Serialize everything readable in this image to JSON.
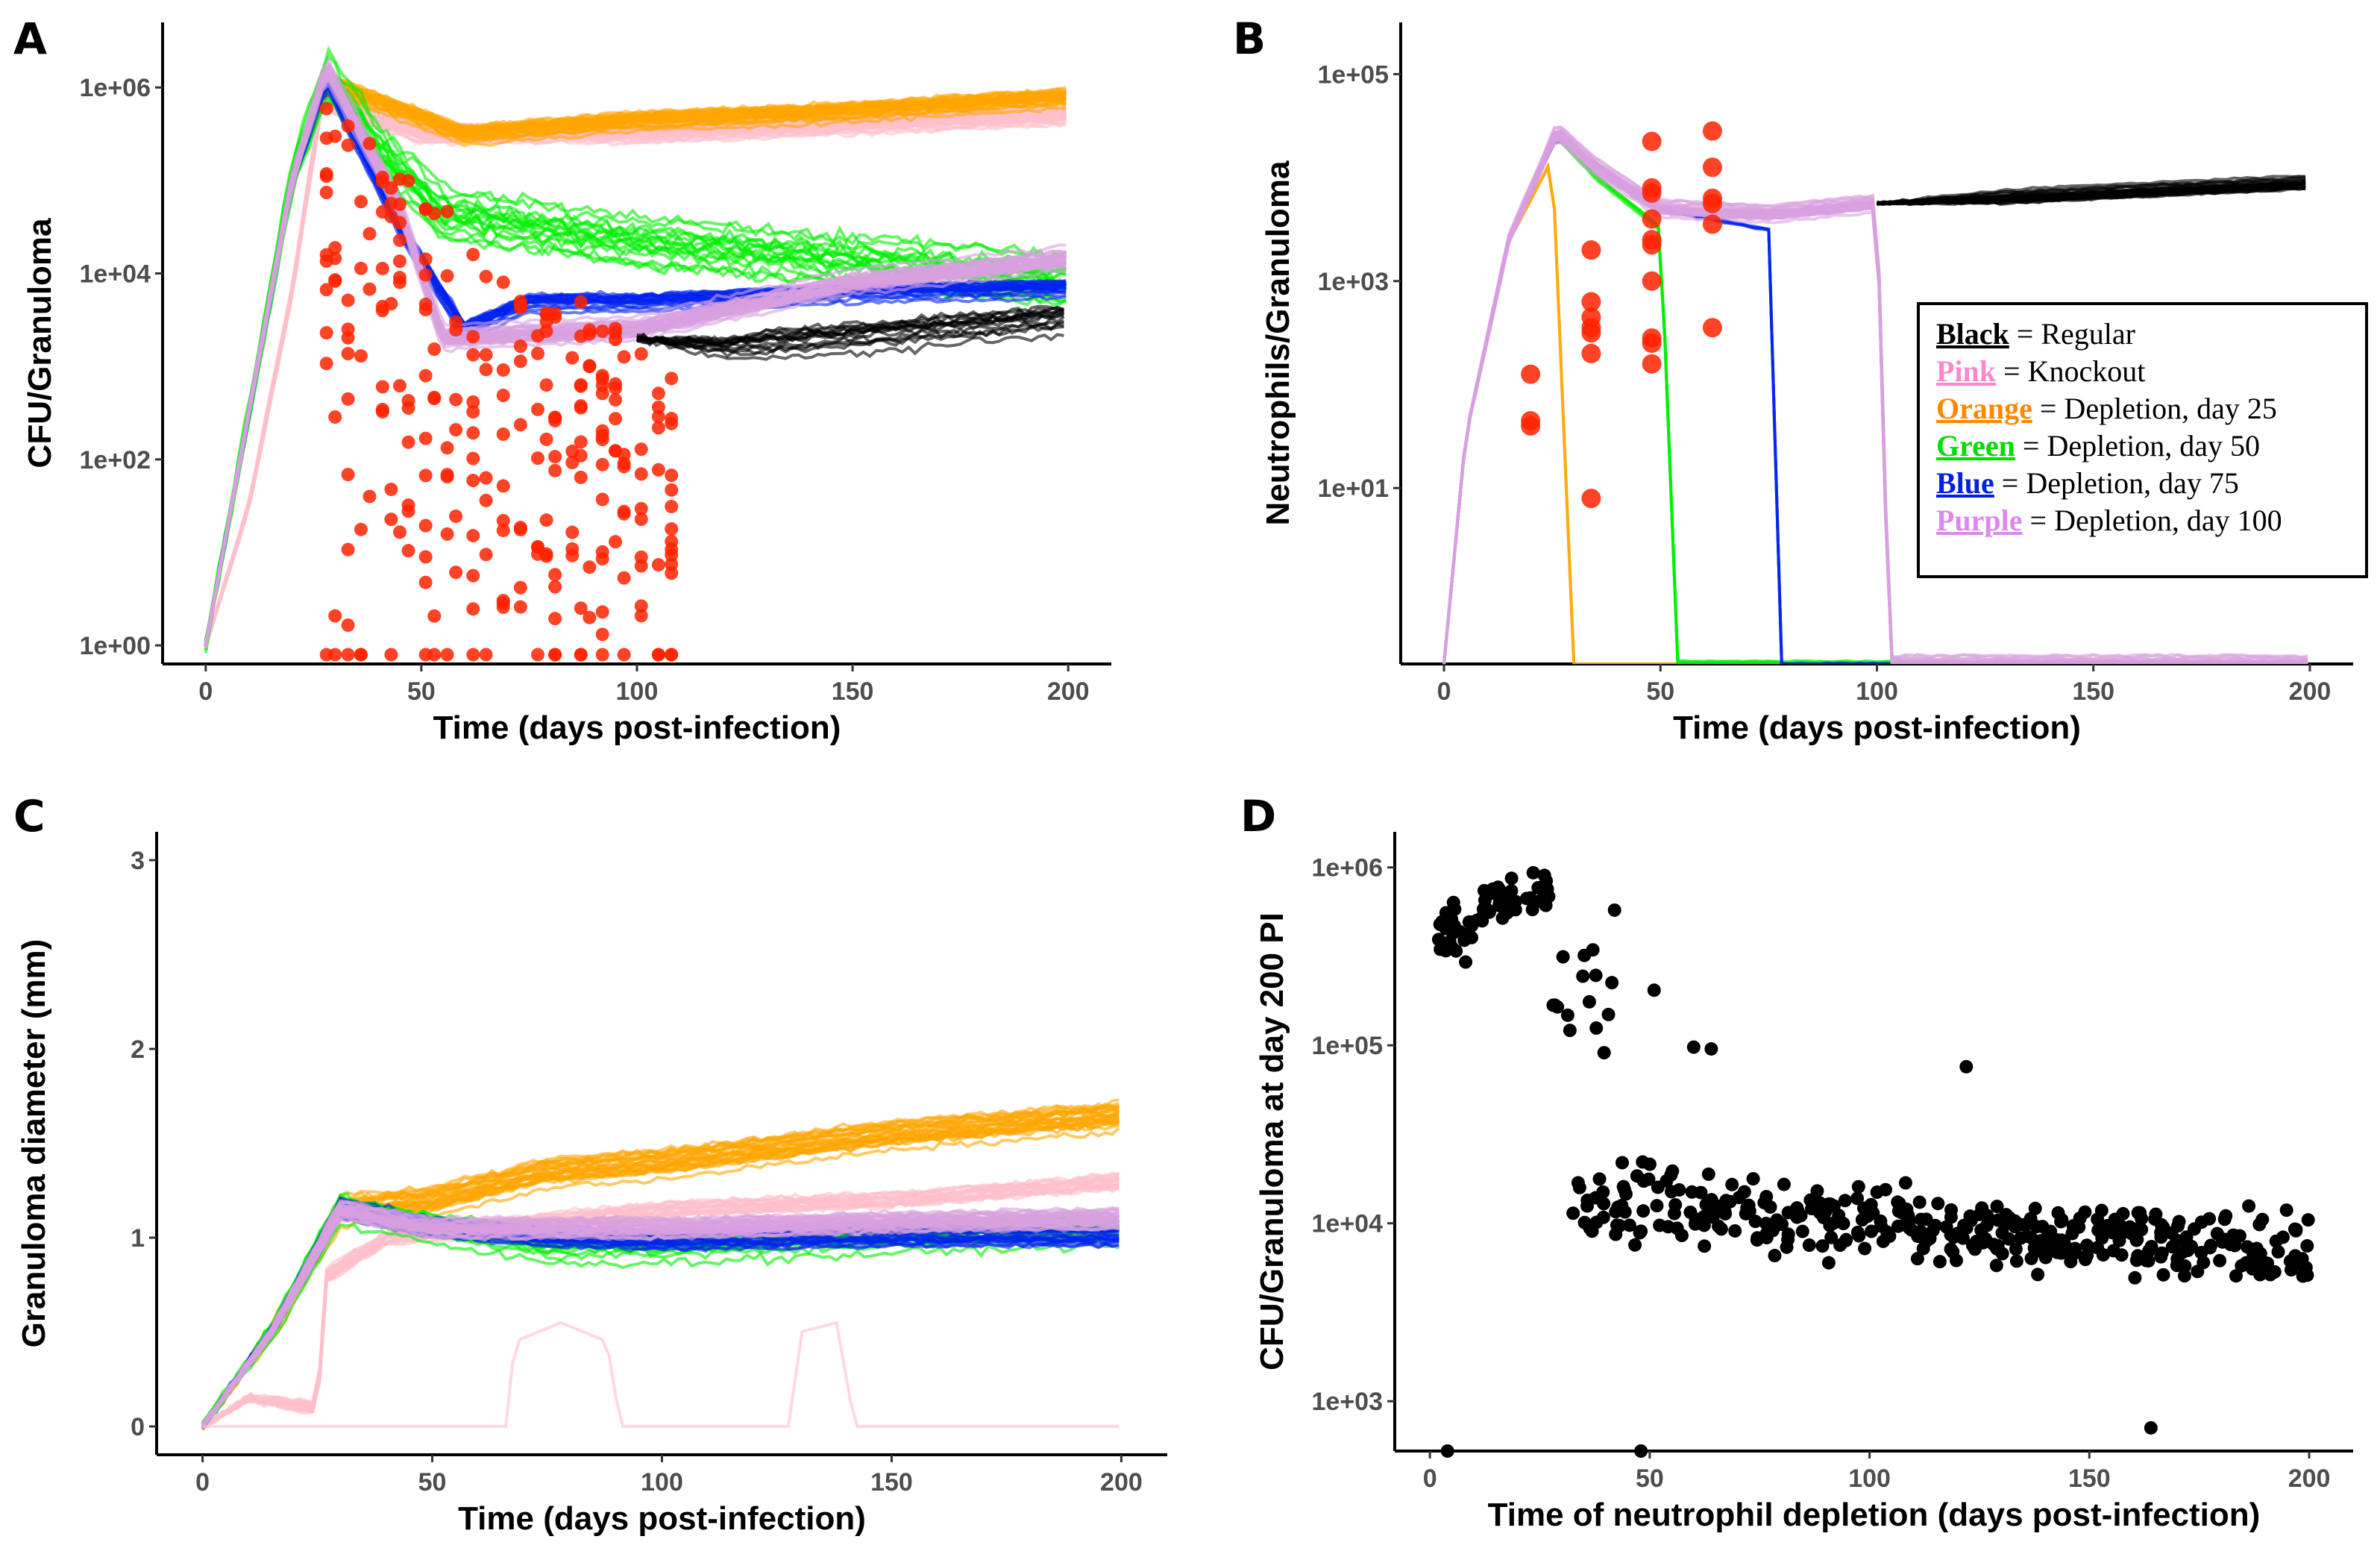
{
  "figure": {
    "panels": [
      "A",
      "B",
      "C",
      "D"
    ]
  },
  "colors": {
    "regular": "#000000",
    "knockout": "#ffc0cb",
    "depletion_25": "#ffa500",
    "depletion_50": "#00ee00",
    "depletion_75": "#0022ee",
    "depletion_100": "#d8a0e0",
    "depletion_100_dark": "#9a86c8",
    "event_dots": "#ff2200",
    "scatter": "#000000",
    "axis": "#000000",
    "tick_text": "#4d4d4d"
  },
  "legend": {
    "items": [
      {
        "key": "Black",
        "text": " = Regular",
        "color": "#000000"
      },
      {
        "key": "Pink",
        "text": " = Knockout",
        "color": "#ff88cc"
      },
      {
        "key": "Orange",
        "text": " = Depletion, day 25",
        "color": "#ff8800"
      },
      {
        "key": "Green",
        "text": " = Depletion, day 50",
        "color": "#00dd00"
      },
      {
        "key": "Blue",
        "text": " = Depletion, day 75",
        "color": "#0022dd"
      },
      {
        "key": "Purple",
        "text": " = Depletion, day 100",
        "color": "#dd88ee"
      }
    ]
  },
  "chart_data": [
    {
      "panel": "A",
      "type": "line",
      "title": "",
      "xlabel": "Time (days post-infection)",
      "ylabel": "CFU/Granuloma",
      "yscale": "log10",
      "xlim": [
        -10,
        210
      ],
      "ylim_log10": [
        -0.2,
        6.7
      ],
      "x_ticks": [
        0,
        50,
        100,
        150,
        200
      ],
      "x_tick_labels": [
        "0",
        "50",
        "100",
        "150",
        "200"
      ],
      "y_ticks_log10": [
        0,
        2,
        4,
        6
      ],
      "y_tick_labels": [
        "1e+00",
        "1e+02",
        "1e+04",
        "1e+06"
      ],
      "grid": false,
      "series": [
        {
          "name": "Knockout",
          "color_key": "knockout",
          "count": 30,
          "points": [
            [
              0,
              0
            ],
            [
              10,
              1.5
            ],
            [
              20,
              3.8
            ],
            [
              27,
              5.9
            ],
            [
              30,
              5.8
            ],
            [
              50,
              5.5
            ],
            [
              100,
              5.5
            ],
            [
              150,
              5.6
            ],
            [
              200,
              5.7
            ]
          ],
          "spread": 0.15
        },
        {
          "name": "Depletion, day 25",
          "color_key": "depletion_25",
          "count": 30,
          "points": [
            [
              0,
              0
            ],
            [
              10,
              2.5
            ],
            [
              20,
              5.0
            ],
            [
              28,
              6.05
            ],
            [
              40,
              5.85
            ],
            [
              60,
              5.5
            ],
            [
              100,
              5.65
            ],
            [
              150,
              5.75
            ],
            [
              200,
              5.9
            ]
          ],
          "spread": 0.15
        },
        {
          "name": "Depletion, day 50",
          "color_key": "depletion_50",
          "count": 18,
          "points": [
            [
              0,
              0
            ],
            [
              10,
              2.5
            ],
            [
              20,
              5.0
            ],
            [
              28,
              6.1
            ],
            [
              40,
              5.3
            ],
            [
              55,
              4.6
            ],
            [
              100,
              4.3
            ],
            [
              150,
              4.1
            ],
            [
              200,
              3.9
            ]
          ],
          "spread": 0.45
        },
        {
          "name": "Depletion, day 75",
          "color_key": "depletion_75",
          "count": 20,
          "points": [
            [
              0,
              0
            ],
            [
              10,
              2.5
            ],
            [
              20,
              5.0
            ],
            [
              28,
              6.1
            ],
            [
              45,
              4.5
            ],
            [
              60,
              3.4
            ],
            [
              75,
              3.7
            ],
            [
              100,
              3.7
            ],
            [
              150,
              3.8
            ],
            [
              200,
              3.85
            ]
          ],
          "spread": 0.15
        },
        {
          "name": "Depletion, day 100",
          "color_key": "depletion_100",
          "count": 30,
          "points": [
            [
              0,
              0
            ],
            [
              10,
              2.5
            ],
            [
              20,
              5.0
            ],
            [
              28,
              6.2
            ],
            [
              45,
              4.7
            ],
            [
              55,
              3.3
            ],
            [
              100,
              3.4
            ],
            [
              150,
              3.9
            ],
            [
              200,
              4.15
            ]
          ],
          "spread": 0.15
        },
        {
          "name": "Regular",
          "color_key": "regular",
          "count": 15,
          "points": [
            [
              100,
              3.3
            ],
            [
              120,
              3.2
            ],
            [
              150,
              3.3
            ],
            [
              200,
              3.5
            ]
          ],
          "spread": 0.25
        }
      ],
      "event_dots": {
        "x_range": [
          28,
          110
        ],
        "log10_range": [
          0,
          5.8
        ],
        "count": 260
      }
    },
    {
      "panel": "B",
      "type": "line",
      "title": "",
      "xlabel": "Time (days post-infection)",
      "ylabel": "Neutrophils/Granuloma",
      "yscale": "log10",
      "xlim": [
        -10,
        210
      ],
      "ylim_log10": [
        -0.7,
        5.5
      ],
      "x_ticks": [
        0,
        50,
        100,
        150,
        200
      ],
      "x_tick_labels": [
        "0",
        "50",
        "100",
        "150",
        "200"
      ],
      "y_ticks_log10": [
        1,
        3,
        5
      ],
      "y_tick_labels": [
        "1e+01",
        "1e+03",
        "1e+05"
      ],
      "grid": false,
      "series": [
        {
          "name": "Depletion, day 25",
          "color_key": "depletion_25",
          "count": 3,
          "points": [
            [
              0,
              -0.7
            ],
            [
              5,
              1.5
            ],
            [
              15,
              3.4
            ],
            [
              25,
              4.2
            ],
            [
              30,
              -0.7
            ],
            [
              200,
              -0.7
            ]
          ],
          "spread": 0.05
        },
        {
          "name": "Depletion, day 50",
          "color_key": "depletion_50",
          "count": 5,
          "points": [
            [
              0,
              -0.7
            ],
            [
              5,
              1.5
            ],
            [
              15,
              3.4
            ],
            [
              26,
              4.4
            ],
            [
              35,
              4.0
            ],
            [
              50,
              3.5
            ],
            [
              54,
              -0.7
            ],
            [
              200,
              -0.7
            ]
          ],
          "spread": 0.05
        },
        {
          "name": "Depletion, day 75",
          "color_key": "depletion_75",
          "count": 4,
          "points": [
            [
              0,
              -0.7
            ],
            [
              5,
              1.5
            ],
            [
              15,
              3.4
            ],
            [
              26,
              4.4
            ],
            [
              50,
              3.7
            ],
            [
              75,
              3.5
            ],
            [
              78,
              -0.7
            ],
            [
              200,
              -0.7
            ]
          ],
          "spread": 0.05
        },
        {
          "name": "Depletion, day 100",
          "color_key": "depletion_100",
          "count": 25,
          "points": [
            [
              0,
              -0.7
            ],
            [
              5,
              1.5
            ],
            [
              15,
              3.4
            ],
            [
              26,
              4.45
            ],
            [
              35,
              4.1
            ],
            [
              50,
              3.7
            ],
            [
              75,
              3.65
            ],
            [
              100,
              3.75
            ],
            [
              103,
              -0.7
            ],
            [
              200,
              -0.7
            ]
          ],
          "spread": 0.1
        },
        {
          "name": "Regular",
          "color_key": "regular",
          "count": 25,
          "points": [
            [
              100,
              3.75
            ],
            [
              150,
              3.85
            ],
            [
              200,
              3.95
            ]
          ],
          "spread": 0.08
        }
      ],
      "event_dots": {
        "points": [
          [
            20,
            2.1
          ],
          [
            20,
            1.65
          ],
          [
            20,
            1.6
          ],
          [
            34,
            3.3
          ],
          [
            34,
            2.8
          ],
          [
            34,
            2.65
          ],
          [
            34,
            2.55
          ],
          [
            34,
            2.5
          ],
          [
            34,
            2.3
          ],
          [
            34,
            0.9
          ],
          [
            48,
            4.35
          ],
          [
            48,
            3.9
          ],
          [
            48,
            3.85
          ],
          [
            48,
            3.6
          ],
          [
            48,
            3.4
          ],
          [
            48,
            3.35
          ],
          [
            48,
            3.0
          ],
          [
            48,
            2.45
          ],
          [
            48,
            2.4
          ],
          [
            48,
            2.2
          ],
          [
            62,
            4.45
          ],
          [
            62,
            4.1
          ],
          [
            62,
            3.8
          ],
          [
            62,
            3.75
          ],
          [
            62,
            3.55
          ],
          [
            62,
            2.55
          ]
        ]
      }
    },
    {
      "panel": "C",
      "type": "line",
      "title": "",
      "xlabel": "Time (days post-infection)",
      "ylabel": "Granuloma diameter (mm)",
      "yscale": "linear",
      "xlim": [
        -10,
        210
      ],
      "ylim": [
        -0.15,
        3.15
      ],
      "x_ticks": [
        0,
        50,
        100,
        150,
        200
      ],
      "x_tick_labels": [
        "0",
        "50",
        "100",
        "150",
        "200"
      ],
      "y_ticks": [
        0,
        1,
        2,
        3
      ],
      "y_tick_labels": [
        "0",
        "1",
        "2",
        "3"
      ],
      "grid": false,
      "series": [
        {
          "name": "Knockout",
          "color_key": "knockout",
          "count": 20,
          "points": [
            [
              0,
              0
            ],
            [
              10,
              0.15
            ],
            [
              25,
              0.1
            ],
            [
              27,
              0.8
            ],
            [
              40,
              1.0
            ],
            [
              60,
              1.05
            ],
            [
              100,
              1.15
            ],
            [
              150,
              1.2
            ],
            [
              200,
              1.3
            ]
          ],
          "spread": 0.1
        },
        {
          "name": "Depletion, day 25",
          "color_key": "depletion_25",
          "count": 25,
          "points": [
            [
              0,
              0
            ],
            [
              15,
              0.5
            ],
            [
              30,
              1.15
            ],
            [
              50,
              1.2
            ],
            [
              75,
              1.35
            ],
            [
              100,
              1.4
            ],
            [
              150,
              1.55
            ],
            [
              200,
              1.65
            ]
          ],
          "spread": 0.1
        },
        {
          "name": "Depletion, day 50",
          "color_key": "depletion_50",
          "count": 18,
          "points": [
            [
              0,
              0
            ],
            [
              15,
              0.5
            ],
            [
              30,
              1.15
            ],
            [
              50,
              1.05
            ],
            [
              75,
              0.95
            ],
            [
              100,
              0.95
            ],
            [
              150,
              1.0
            ],
            [
              200,
              1.05
            ]
          ],
          "spread": 0.15
        },
        {
          "name": "Depletion, day 75",
          "color_key": "depletion_75",
          "count": 20,
          "points": [
            [
              0,
              0
            ],
            [
              15,
              0.5
            ],
            [
              30,
              1.15
            ],
            [
              50,
              1.05
            ],
            [
              75,
              1.0
            ],
            [
              100,
              0.98
            ],
            [
              150,
              1.0
            ],
            [
              200,
              1.0
            ]
          ],
          "spread": 0.08
        },
        {
          "name": "Depletion, day 100",
          "color_key": "depletion_100",
          "count": 30,
          "points": [
            [
              0,
              0
            ],
            [
              15,
              0.5
            ],
            [
              30,
              1.15
            ],
            [
              50,
              1.05
            ],
            [
              75,
              1.05
            ],
            [
              100,
              1.05
            ],
            [
              150,
              1.08
            ],
            [
              200,
              1.1
            ]
          ],
          "spread": 0.08
        },
        {
          "name": "Knockout (cleared)",
          "color_key": "knockout",
          "count": 1,
          "points": [
            [
              0,
              0
            ],
            [
              66,
              0
            ],
            [
              68,
              0.45
            ],
            [
              78,
              0.55
            ],
            [
              88,
              0.45
            ],
            [
              91,
              0
            ],
            [
              128,
              0
            ],
            [
              130,
              0.5
            ],
            [
              138,
              0.55
            ],
            [
              142,
              0
            ],
            [
              200,
              0
            ]
          ],
          "spread": 0
        }
      ]
    },
    {
      "panel": "D",
      "type": "scatter",
      "title": "",
      "xlabel": "Time of neutrophil depletion (days post-infection)",
      "ylabel": "CFU/Granuloma at day 200 PI",
      "yscale": "log10",
      "xlim": [
        -8,
        210
      ],
      "ylim_log10": [
        2.72,
        6.2
      ],
      "x_ticks": [
        0,
        50,
        100,
        150,
        200
      ],
      "x_tick_labels": [
        "0",
        "50",
        "100",
        "150",
        "200"
      ],
      "y_ticks_log10": [
        3,
        4,
        5,
        6
      ],
      "y_tick_labels": [
        "1e+03",
        "1e+04",
        "1e+05",
        "1e+06"
      ],
      "grid": false,
      "clusters": [
        {
          "x_range": [
            2,
            12
          ],
          "log10_center": 5.65,
          "log10_spread": 0.13,
          "count": 30
        },
        {
          "x_range": [
            12,
            28
          ],
          "log10_center": 5.85,
          "log10_spread": 0.12,
          "count": 35
        },
        {
          "x_range": [
            28,
            42
          ],
          "log10_center": 5.25,
          "log10_spread": 0.25,
          "count": 15
        },
        {
          "x_range": [
            32,
            60
          ],
          "log10_center": 4.15,
          "log10_spread": 0.25,
          "count": 50
        },
        {
          "x_range": [
            60,
            200
          ],
          "log10_center": 4.05,
          "log10_spread": 0.18,
          "count": 330
        }
      ],
      "outliers": [
        [
          4,
          2.72
        ],
        [
          48,
          2.72
        ],
        [
          164,
          2.85
        ],
        [
          122,
          4.88
        ],
        [
          60,
          4.99
        ],
        [
          64,
          4.98
        ],
        [
          42,
          5.76
        ],
        [
          51,
          5.31
        ]
      ]
    }
  ]
}
